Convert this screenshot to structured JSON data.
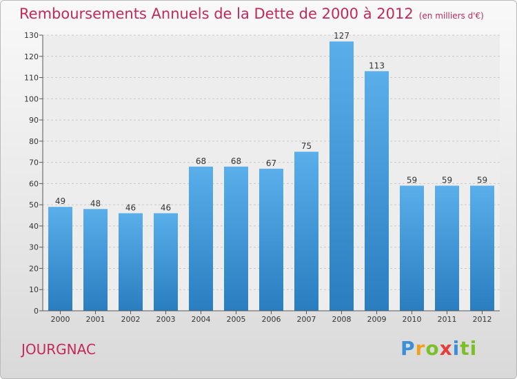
{
  "title": {
    "main": "Remboursements Annuels de la Dette de 2000 à 2012",
    "unit": "(en milliers d'€)"
  },
  "place": "JOURGNAC",
  "logo": {
    "text": "Proxiti",
    "letters": [
      "P",
      "r",
      "o",
      "x",
      "i",
      "ti"
    ]
  },
  "colors": {
    "accent": "#c4285a",
    "bar_top": "#5aaeea",
    "bar_bottom": "#2a7ec0"
  },
  "chart_data": {
    "type": "bar",
    "categories": [
      "2000",
      "2001",
      "2002",
      "2003",
      "2004",
      "2005",
      "2006",
      "2007",
      "2008",
      "2009",
      "2010",
      "2011",
      "2012"
    ],
    "values": [
      49,
      48,
      46,
      46,
      68,
      68,
      67,
      75,
      127,
      113,
      59,
      59,
      59
    ],
    "ylim": [
      0,
      130
    ],
    "yticks": [
      0,
      10,
      20,
      30,
      40,
      50,
      60,
      70,
      80,
      90,
      100,
      110,
      120,
      130
    ],
    "grid": true,
    "xlabel": "",
    "ylabel": ""
  }
}
